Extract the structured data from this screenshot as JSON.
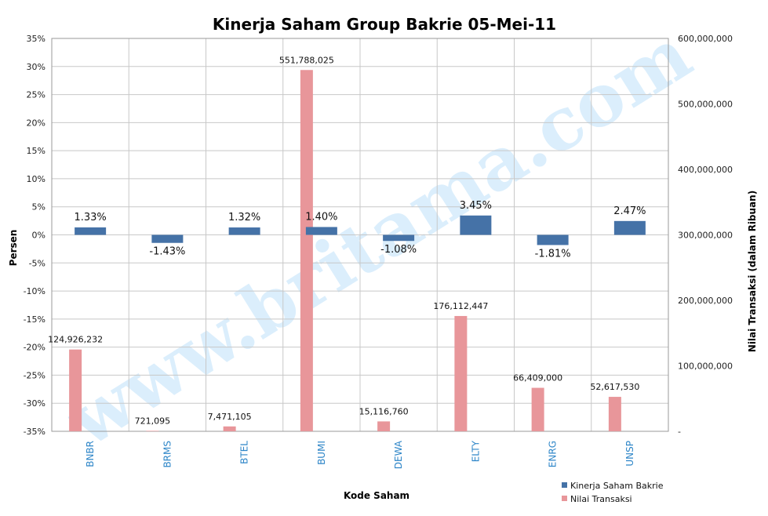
{
  "chart_data": {
    "type": "bar",
    "title": "Kinerja  Saham Group Bakrie 05-Mei-11",
    "xlabel": "Kode Saham",
    "ylabel": "Persen",
    "y2label": "Nilai Transaksi (dalam Ribuan)",
    "categories": [
      "BNBR",
      "BRMS",
      "BTEL",
      "BUMI",
      "DEWA",
      "ELTY",
      "ENRG",
      "UNSP"
    ],
    "ylim": [
      -35,
      35
    ],
    "y2lim": [
      0,
      600000000
    ],
    "yticks": [
      "35%",
      "30%",
      "25%",
      "20%",
      "15%",
      "10%",
      "5%",
      "0%",
      "-5%",
      "-10%",
      "-15%",
      "-20%",
      "-25%",
      "-30%",
      "-35%"
    ],
    "y2ticks": [
      "600,000,000",
      "500,000,000",
      "400,000,000",
      "300,000,000",
      "200,000,000",
      "100,000,000",
      "-"
    ],
    "grid": true,
    "legend_position": "bottom-right",
    "series": [
      {
        "name": "Kinerja Saham  Bakrie",
        "axis": "left",
        "color": "#4572a7",
        "values": [
          1.33,
          -1.43,
          1.32,
          1.4,
          -1.08,
          3.45,
          -1.81,
          2.47
        ],
        "labels": [
          "1.33%",
          "-1.43%",
          "1.32%",
          "1.40%",
          "-1.08%",
          "3.45%",
          "-1.81%",
          "2.47%"
        ]
      },
      {
        "name": "Nilai Transaksi",
        "axis": "right",
        "color": "#e8969a",
        "values": [
          124926232,
          721095,
          7471105,
          551788025,
          15116760,
          176112447,
          66409000,
          52617530
        ],
        "labels": [
          "124,926,232",
          "721,095",
          "7,471,105",
          "551,788,025",
          "15,116,760",
          "176,112,447",
          "66,409,000",
          "52,617,530"
        ]
      }
    ]
  },
  "watermark": "www.britama.com"
}
